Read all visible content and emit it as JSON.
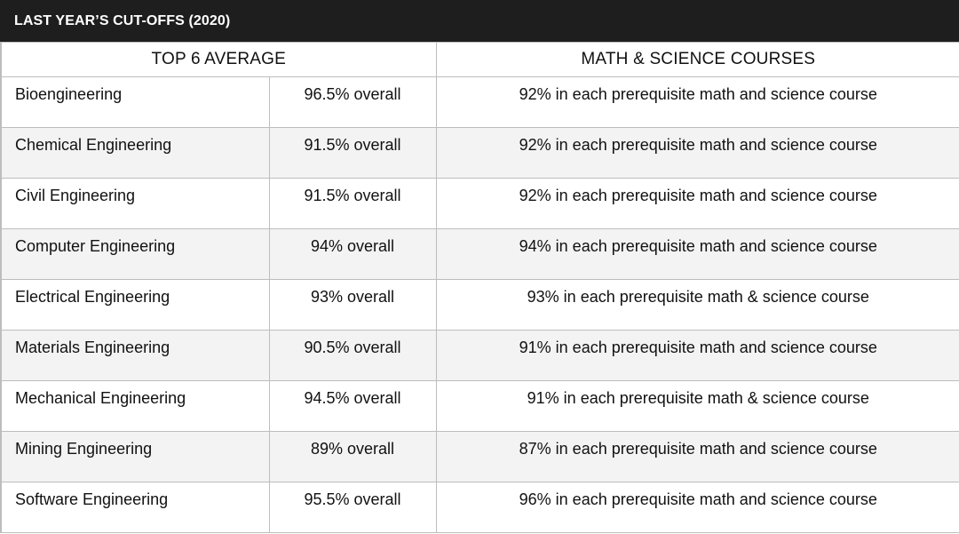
{
  "title": "LAST YEAR’S CUT-OFFS (2020)",
  "headers": {
    "top6": "TOP 6 AVERAGE",
    "math_science": "MATH & SCIENCE COURSES"
  },
  "rows": [
    {
      "program": "Bioengineering",
      "average": "96.5% overall",
      "requirement": "92% in each prerequisite math and science course"
    },
    {
      "program": "Chemical Engineering",
      "average": "91.5% overall",
      "requirement": "92% in each prerequisite math and science course"
    },
    {
      "program": "Civil Engineering",
      "average": "91.5% overall",
      "requirement": "92% in each prerequisite math and science course"
    },
    {
      "program": "Computer Engineering",
      "average": "94% overall",
      "requirement": "94% in each prerequisite math and science course"
    },
    {
      "program": "Electrical Engineering",
      "average": "93% overall",
      "requirement": "93% in each prerequisite math & science course"
    },
    {
      "program": "Materials Engineering",
      "average": "90.5% overall",
      "requirement": "91% in each prerequisite math and science course"
    },
    {
      "program": "Mechanical Engineering",
      "average": "94.5% overall",
      "requirement": "91% in each prerequisite math & science course"
    },
    {
      "program": "Mining Engineering",
      "average": "89% overall",
      "requirement": "87% in each prerequisite math and science course"
    },
    {
      "program": "Software Engineering",
      "average": "95.5% overall",
      "requirement": "96% in each prerequisite math and science course"
    }
  ]
}
